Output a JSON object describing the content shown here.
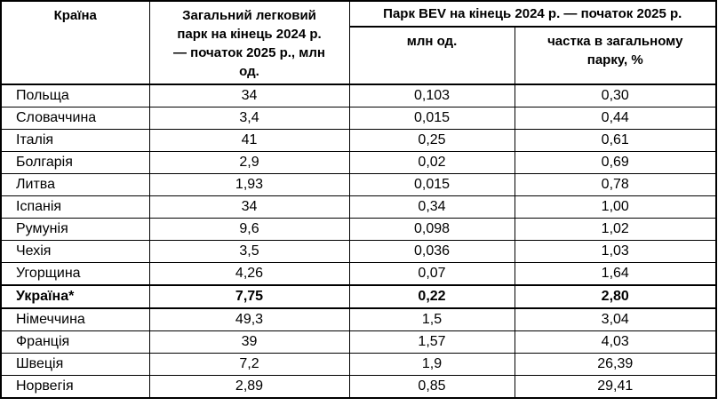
{
  "colors": {
    "border": "#000000",
    "background": "#ffffff",
    "text": "#000000"
  },
  "table": {
    "headers": {
      "country": "Країна",
      "total_fleet": "Загальний легковий\nпарк на кінець 2024 р.\n— початок 2025 р., млн\nод.",
      "bev_group": "Парк BEV на кінець 2024 р. — початок 2025 р.",
      "bev_units": "млн од.",
      "bev_share": "частка в загальному\nпарку, %"
    },
    "rows": [
      {
        "country": "Польща",
        "total_fleet": "34",
        "bev_units": "0,103",
        "bev_share": "0,30"
      },
      {
        "country": "Словаччина",
        "total_fleet": "3,4",
        "bev_units": "0,015",
        "bev_share": "0,44"
      },
      {
        "country": "Італія",
        "total_fleet": "41",
        "bev_units": "0,25",
        "bev_share": "0,61"
      },
      {
        "country": "Болгарія",
        "total_fleet": "2,9",
        "bev_units": "0,02",
        "bev_share": "0,69"
      },
      {
        "country": "Литва",
        "total_fleet": "1,93",
        "bev_units": "0,015",
        "bev_share": "0,78"
      },
      {
        "country": "Іспанія",
        "total_fleet": "34",
        "bev_units": "0,34",
        "bev_share": "1,00"
      },
      {
        "country": "Румунія",
        "total_fleet": "9,6",
        "bev_units": "0,098",
        "bev_share": "1,02"
      },
      {
        "country": "Чехія",
        "total_fleet": "3,5",
        "bev_units": "0,036",
        "bev_share": "1,03"
      },
      {
        "country": "Угорщина",
        "total_fleet": "4,26",
        "bev_units": "0,07",
        "bev_share": "1,64"
      },
      {
        "country": "Україна*",
        "total_fleet": "7,75",
        "bev_units": "0,22",
        "bev_share": "2,80",
        "emphasis": true
      },
      {
        "country": "Німеччина",
        "total_fleet": "49,3",
        "bev_units": "1,5",
        "bev_share": "3,04"
      },
      {
        "country": "Франція",
        "total_fleet": "39",
        "bev_units": "1,57",
        "bev_share": "4,03"
      },
      {
        "country": "Швеція",
        "total_fleet": "7,2",
        "bev_units": "1,9",
        "bev_share": "26,39"
      },
      {
        "country": "Норвегія",
        "total_fleet": "2,89",
        "bev_units": "0,85",
        "bev_share": "29,41"
      }
    ]
  }
}
